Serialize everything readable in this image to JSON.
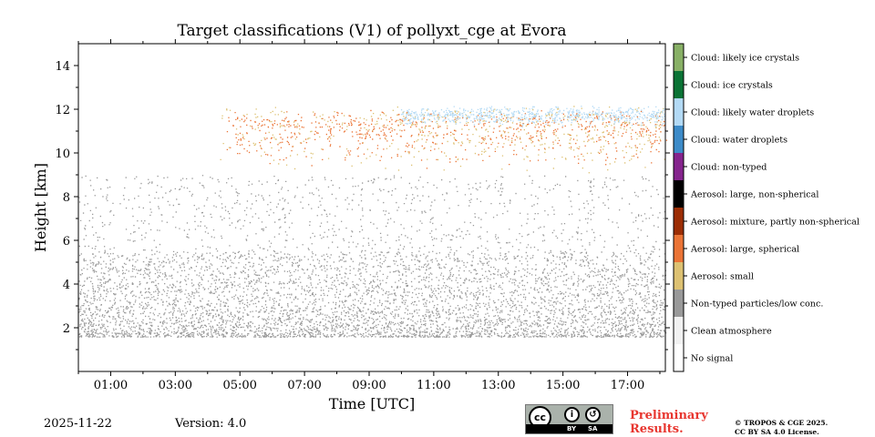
{
  "chart_data": {
    "type": "heatmap",
    "title": "Target classifications (V1) of pollyxt_cge at Evora",
    "xlabel": "Time [UTC]",
    "ylabel": "Height [km]",
    "xlim": [
      0.0,
      18.17
    ],
    "ylim": [
      0,
      15
    ],
    "xticks": [
      1,
      3,
      5,
      7,
      9,
      11,
      13,
      15,
      17
    ],
    "xtick_labels": [
      "01:00",
      "03:00",
      "05:00",
      "07:00",
      "09:00",
      "11:00",
      "13:00",
      "15:00",
      "17:00"
    ],
    "yticks": [
      2,
      4,
      6,
      8,
      10,
      12,
      14
    ],
    "ytick_labels": [
      "2",
      "4",
      "6",
      "8",
      "10",
      "12",
      "14"
    ],
    "classes": [
      {
        "label": "No signal",
        "color": "#ffffff"
      },
      {
        "label": "Clean atmosphere",
        "color": "#f2f2f2"
      },
      {
        "label": "Non-typed particles/low conc.",
        "color": "#999999"
      },
      {
        "label": "Aerosol: small",
        "color": "#ddc172"
      },
      {
        "label": "Aerosol: large, spherical",
        "color": "#eb7436"
      },
      {
        "label": "Aerosol: mixture, partly non-spherical",
        "color": "#9c2d04"
      },
      {
        "label": "Aerosol: large, non-spherical",
        "color": "#000000"
      },
      {
        "label": "Cloud: non-typed",
        "color": "#85248d"
      },
      {
        "label": "Cloud: water droplets",
        "color": "#3d8bc8"
      },
      {
        "label": "Cloud: likely water droplets",
        "color": "#b3daf5"
      },
      {
        "label": "Cloud: ice crystals",
        "color": "#0b7335"
      },
      {
        "label": "Cloud: likely ice crystals",
        "color": "#88b066"
      }
    ],
    "regions": [
      {
        "class": "Non-typed particles/low conc.",
        "t_start": 0.0,
        "t_end": 18.17,
        "h_bottom": 1.6,
        "h_top": 5.5,
        "density": "high near ground"
      },
      {
        "class": "Non-typed particles/low conc.",
        "t_start": 0.0,
        "t_end": 18.17,
        "h_bottom": 5.5,
        "h_top": 9.0,
        "density": "sparse"
      },
      {
        "class": "Aerosol: small",
        "t_start": 4.4,
        "t_end": 18.17,
        "h_bottom": 9.0,
        "h_top": 12.2
      },
      {
        "class": "Aerosol: large, spherical",
        "t_start": 4.6,
        "t_end": 18.17,
        "h_bottom": 9.3,
        "h_top": 12.0
      },
      {
        "class": "Cloud: likely water droplets",
        "t_start": 10.0,
        "t_end": 18.17,
        "h_bottom": 11.2,
        "h_top": 12.2
      }
    ]
  },
  "footer": {
    "date": "2025-11-22",
    "version": "Version: 4.0",
    "cc_badge": {
      "cc": "cc",
      "by": "BY",
      "sa": "SA"
    },
    "preliminary_line1": "Preliminary",
    "preliminary_line2": "Results.",
    "license_line1": "© TROPOS & CGE 2025.",
    "license_line2": "CC BY SA 4.0 License."
  },
  "colors": {
    "accent": "#e8362f"
  }
}
